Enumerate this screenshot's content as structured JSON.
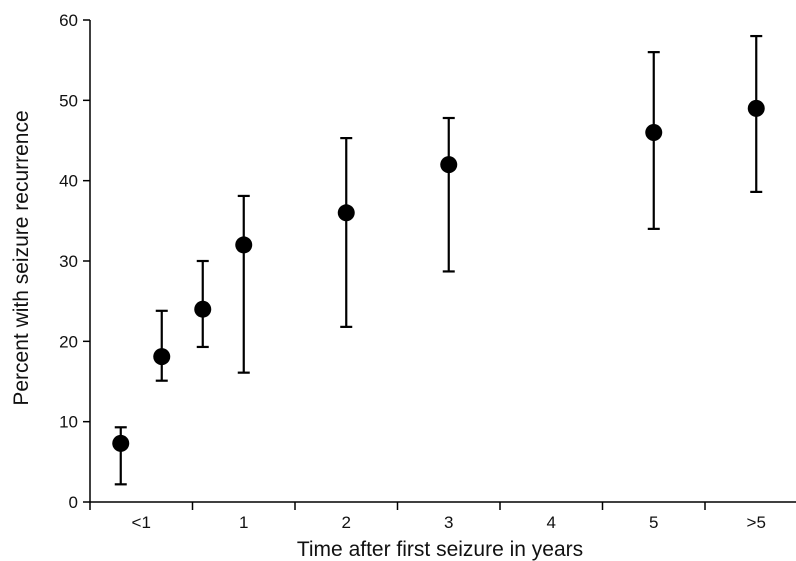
{
  "chart_data": {
    "type": "scatter",
    "xlabel": "Time after first seizure in years",
    "ylabel": "Percent with seizure recurrence",
    "x_tick_labels": [
      "<1",
      "1",
      "2",
      "3",
      "4",
      "5",
      ">5"
    ],
    "y_ticks": [
      0,
      10,
      20,
      30,
      40,
      50,
      60
    ],
    "ylim": [
      0,
      60
    ],
    "grid": false,
    "legend": "none",
    "colors": {
      "marker": "#000000",
      "axis": "#000000"
    },
    "points": [
      {
        "x_position": 0.3,
        "y": 7.3,
        "ci_low": 2.2,
        "ci_high": 9.3
      },
      {
        "x_position": 0.7,
        "y": 18.1,
        "ci_low": 15.1,
        "ci_high": 23.8
      },
      {
        "x_position": 1.1,
        "y": 24.0,
        "ci_low": 19.3,
        "ci_high": 30.0
      },
      {
        "x_position": 1.5,
        "y": 32.0,
        "ci_low": 16.1,
        "ci_high": 38.1
      },
      {
        "x_position": 2.5,
        "y": 36.0,
        "ci_low": 21.8,
        "ci_high": 45.3
      },
      {
        "x_position": 3.5,
        "y": 42.0,
        "ci_low": 28.7,
        "ci_high": 47.8
      },
      {
        "x_position": 5.5,
        "y": 46.0,
        "ci_low": 34.0,
        "ci_high": 56.0
      },
      {
        "x_position": 6.5,
        "y": 49.0,
        "ci_low": 38.6,
        "ci_high": 58.0
      }
    ]
  }
}
